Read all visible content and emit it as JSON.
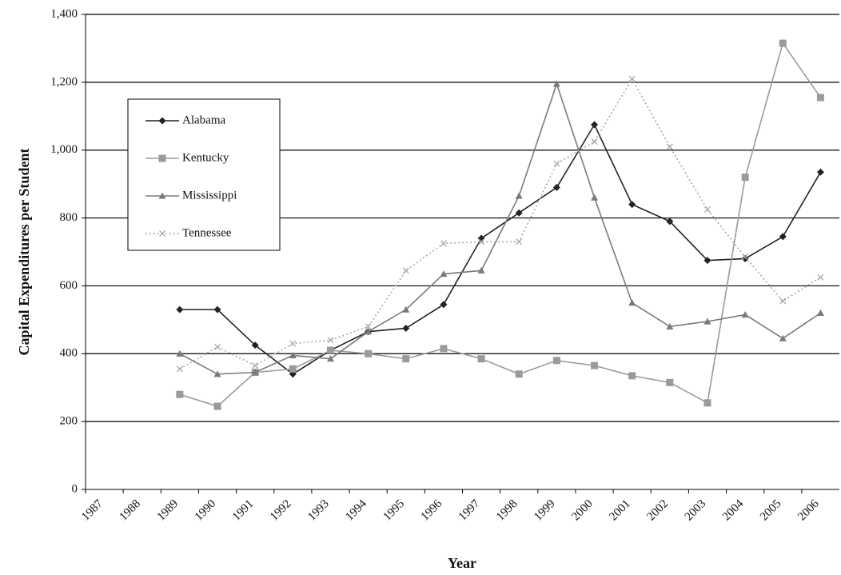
{
  "chart_data": {
    "type": "line",
    "x_label": "Year",
    "y_label": "Capital Expenditures per Student",
    "categories": [
      "1987",
      "1988",
      "1989",
      "1990",
      "1991",
      "1992",
      "1993",
      "1994",
      "1995",
      "1996",
      "1997",
      "1998",
      "1999",
      "2000",
      "2001",
      "2002",
      "2003",
      "2004",
      "2005",
      "2006"
    ],
    "series": [
      {
        "name": "Alabama",
        "color": "#222222",
        "marker": "diamond",
        "line_style": "solid",
        "values": [
          null,
          null,
          530,
          530,
          425,
          340,
          410,
          465,
          475,
          545,
          740,
          815,
          890,
          1075,
          840,
          790,
          675,
          680,
          745,
          935
        ]
      },
      {
        "name": "Kentucky",
        "color": "#9a9a9a",
        "marker": "square",
        "line_style": "solid",
        "values": [
          null,
          null,
          280,
          245,
          345,
          355,
          410,
          400,
          385,
          415,
          385,
          340,
          380,
          365,
          335,
          315,
          255,
          920,
          1315,
          1155
        ]
      },
      {
        "name": "Mississippi",
        "color": "#7a7a7a",
        "marker": "triangle",
        "line_style": "solid",
        "values": [
          null,
          null,
          400,
          340,
          345,
          395,
          385,
          465,
          530,
          635,
          645,
          865,
          1195,
          860,
          550,
          480,
          495,
          515,
          445,
          520
        ]
      },
      {
        "name": "Tennessee",
        "color": "#a8a8a8",
        "marker": "x",
        "line_style": "dotted",
        "values": [
          null,
          null,
          355,
          420,
          365,
          430,
          440,
          480,
          645,
          725,
          730,
          730,
          960,
          1025,
          1210,
          1010,
          825,
          685,
          555,
          625
        ]
      }
    ],
    "ylim": [
      0,
      1400
    ],
    "yticks": [
      0,
      200,
      400,
      600,
      800,
      {
        "value": 1000,
        "label": "1,000"
      },
      {
        "value": 1200,
        "label": "1,200"
      },
      {
        "value": 1400,
        "label": "1,400"
      }
    ],
    "grid": true,
    "legend_position": "upper left"
  }
}
